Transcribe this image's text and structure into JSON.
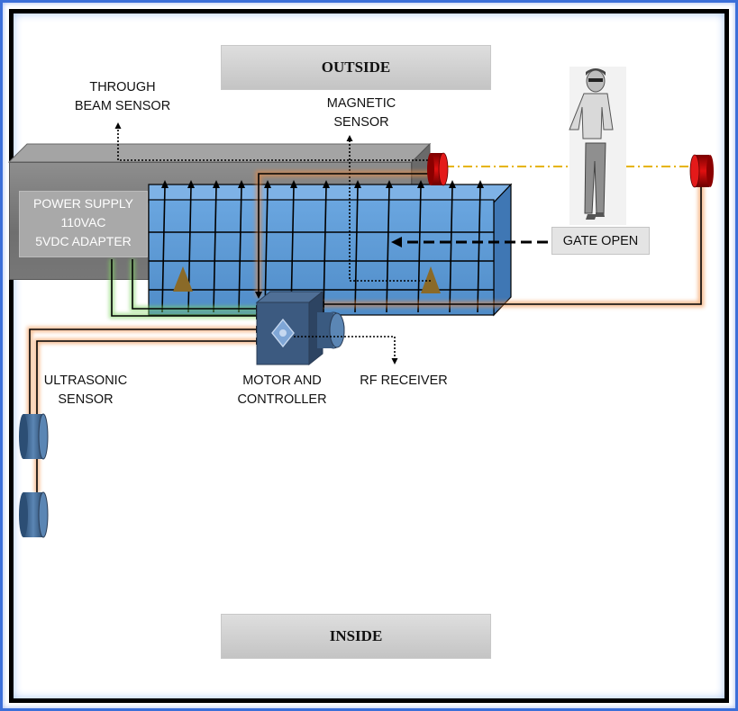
{
  "zones": {
    "outside": "OUTSIDE",
    "inside": "INSIDE"
  },
  "labels": {
    "through_beam_sensor": "THROUGH\nBEAM SENSOR",
    "magnetic_sensor": "MAGNETIC\nSENSOR",
    "power_supply": "POWER SUPPLY\n110VAC\n5VDC ADAPTER",
    "gate_open": "GATE OPEN",
    "motor_and_controller": "MOTOR AND\nCONTROLLER",
    "rf_receiver": "RF RECEIVER",
    "ultrasonic_sensor": "ULTRASONIC\nSENSOR"
  },
  "icons": {
    "person": "walking-person-icon",
    "motor": "motor-icon",
    "beam_emitter": "beam-emitter-icon",
    "beam_receiver": "beam-receiver-icon",
    "ultrasonic": "ultrasonic-sensor-icon",
    "magnetic_marker": "triangle-marker-icon"
  },
  "colors": {
    "frame_outer": "#3b6fd8",
    "gate_fill": "#5f9bd6",
    "wire_orange": "#f0883a",
    "wire_green": "#7dd35e",
    "beam_yellow": "#e6b400",
    "sensor_red": "#c00000"
  }
}
